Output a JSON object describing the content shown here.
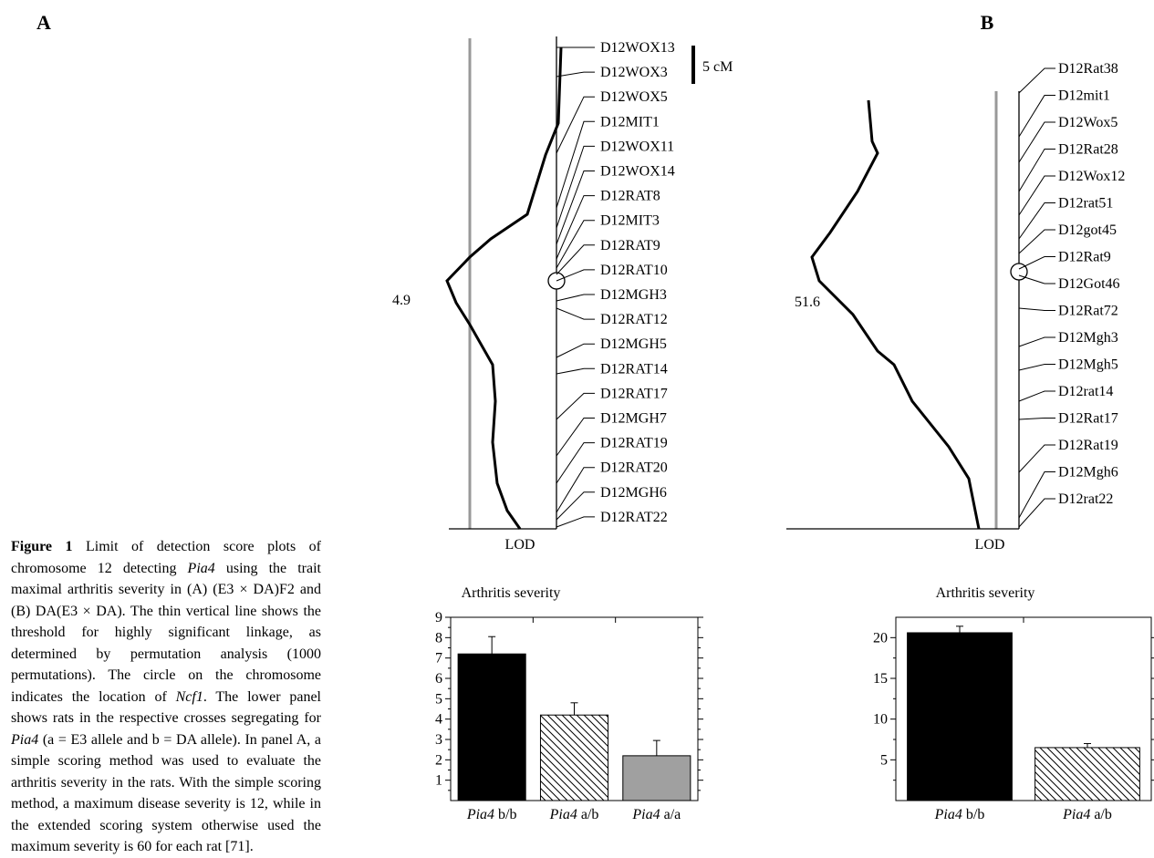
{
  "caption": {
    "label": "Figure 1",
    "segments": [
      {
        "t": "Limit of detection score plots of chromosome 12 detecting "
      },
      {
        "t": "Pia4",
        "i": true
      },
      {
        "t": " using the trait maximal arthritis severity in (A) (E3 × DA)F2 and (B) DA(E3 × DA). The thin vertical line shows the threshold for highly significant linkage, as determined by permutation analysis (1000 permutations). The circle on the chromosome indicates the location of "
      },
      {
        "t": "Ncf1",
        "i": true
      },
      {
        "t": ". The lower panel shows rats in the respective crosses segregating for "
      },
      {
        "t": "Pia4",
        "i": true
      },
      {
        "t": " (a = E3 allele and b = DA allele). In panel A, a simple scoring method was used to evaluate the arthritis severity in the rats. With the simple scoring method, a maximum disease severity is 12, while in the extended scoring system otherwise used the maximum severity is 60 for each rat [71]."
      }
    ]
  },
  "scale_bar_label": "5 cM",
  "lod_label": "LOD",
  "panelA": {
    "letter": "A",
    "peak_label": "4.9",
    "markers": [
      "D12WOX13",
      "D12WOX3",
      "D12WOX5",
      "D12MIT1",
      "D12WOX11",
      "D12WOX14",
      "D12RAT8",
      "D12MIT3",
      "D12RAT9",
      "D12RAT10",
      "D12MGH3",
      "D12RAT12",
      "D12MGH5",
      "D12RAT14",
      "D12RAT17",
      "D12MGH7",
      "D12RAT19",
      "D12RAT20",
      "D12MGH6",
      "D12RAT22"
    ]
  },
  "panelB": {
    "letter": "B",
    "peak_label": "51.6",
    "markers": [
      "D12Rat38",
      "D12mit1",
      "D12Wox5",
      "D12Rat28",
      "D12Wox12",
      "D12rat51",
      "D12got45",
      "D12Rat9",
      "D12Got46",
      "D12Rat72",
      "D12Mgh3",
      "D12Mgh5",
      "D12rat14",
      "D12Rat17",
      "D12Rat19",
      "D12Mgh6",
      "D12rat22"
    ]
  },
  "chart_data": [
    {
      "type": "bar",
      "title": "Arthritis severity",
      "categories": [
        {
          "gene": "Pia4",
          "genotype": "b/b"
        },
        {
          "gene": "Pia4",
          "genotype": "a/b"
        },
        {
          "gene": "Pia4",
          "genotype": "a/a"
        }
      ],
      "values": [
        7.2,
        4.2,
        2.2
      ],
      "errors": [
        0.85,
        0.6,
        0.75
      ],
      "fills": [
        "black",
        "hatch",
        "#a0a0a0"
      ],
      "ylim": [
        0,
        9
      ],
      "yticks": [
        "1",
        "2",
        "3",
        "4",
        "5",
        "6",
        "7",
        "8",
        "9"
      ]
    },
    {
      "type": "bar",
      "title": "Arthritis severity",
      "categories": [
        {
          "gene": "Pia4",
          "genotype": "b/b"
        },
        {
          "gene": "Pia4",
          "genotype": "a/b"
        }
      ],
      "values": [
        20.6,
        6.5
      ],
      "errors": [
        0.8,
        0.5
      ],
      "fills": [
        "black",
        "hatch"
      ],
      "ylim": [
        0,
        22.5
      ],
      "yticks": [
        "5",
        "10",
        "15",
        "20"
      ]
    }
  ]
}
